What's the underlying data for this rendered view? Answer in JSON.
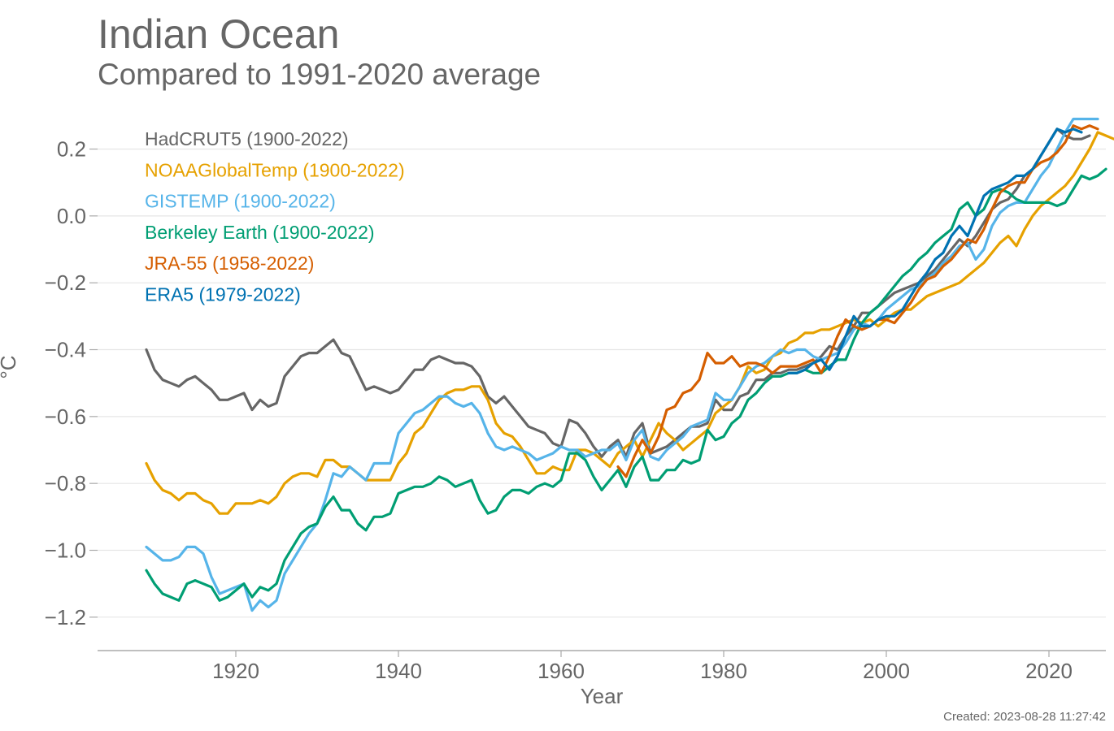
{
  "chart_data": {
    "type": "line",
    "title": "Indian Ocean",
    "subtitle": "Compared to 1991-2020 average",
    "xlabel": "Year",
    "ylabel": "°C",
    "xlim": [
      1903,
      2027
    ],
    "ylim": [
      -1.3,
      0.33
    ],
    "xticks": [
      1920,
      1940,
      1960,
      1980,
      2000,
      2020
    ],
    "yticks": [
      0.2,
      0.0,
      -0.2,
      -0.4,
      -0.6,
      -0.8,
      -1.0,
      -1.2
    ],
    "ytick_labels": [
      "0.2",
      "0.0",
      "−0.2",
      "−0.4",
      "−0.6",
      "−0.8",
      "−1.0",
      "−1.2"
    ],
    "grid": true,
    "legend_position": "top-left",
    "created": "Created: 2023-08-28 11:27:42",
    "series": [
      {
        "name": "HadCRUT5 (1900-2022)",
        "color": "#666666",
        "start": 1909,
        "values": [
          -0.4,
          -0.46,
          -0.49,
          -0.5,
          -0.51,
          -0.49,
          -0.48,
          -0.5,
          -0.52,
          -0.55,
          -0.55,
          -0.54,
          -0.53,
          -0.58,
          -0.55,
          -0.57,
          -0.56,
          -0.48,
          -0.45,
          -0.42,
          -0.41,
          -0.41,
          -0.39,
          -0.37,
          -0.41,
          -0.42,
          -0.47,
          -0.52,
          -0.51,
          -0.52,
          -0.53,
          -0.52,
          -0.49,
          -0.46,
          -0.46,
          -0.43,
          -0.42,
          -0.43,
          -0.44,
          -0.44,
          -0.45,
          -0.48,
          -0.54,
          -0.56,
          -0.54,
          -0.57,
          -0.6,
          -0.63,
          -0.64,
          -0.65,
          -0.68,
          -0.69,
          -0.61,
          -0.62,
          -0.65,
          -0.69,
          -0.72,
          -0.69,
          -0.67,
          -0.72,
          -0.65,
          -0.62,
          -0.71,
          -0.7,
          -0.69,
          -0.67,
          -0.65,
          -0.63,
          -0.63,
          -0.62,
          -0.55,
          -0.58,
          -0.58,
          -0.54,
          -0.53,
          -0.49,
          -0.49,
          -0.47,
          -0.47,
          -0.46,
          -0.46,
          -0.45,
          -0.44,
          -0.42,
          -0.39,
          -0.4,
          -0.36,
          -0.33,
          -0.29,
          -0.29,
          -0.27,
          -0.25,
          -0.23,
          -0.22,
          -0.21,
          -0.2,
          -0.18,
          -0.16,
          -0.13,
          -0.1,
          -0.07,
          -0.09,
          -0.06,
          -0.02,
          0.02,
          0.04,
          0.05,
          0.08,
          0.12,
          0.14,
          0.18,
          0.22,
          0.26,
          0.24,
          0.23,
          0.23,
          0.24
        ]
      },
      {
        "name": "NOAAGlobalTemp (1900-2022)",
        "color": "#E6A100",
        "start": 1909,
        "values": [
          -0.74,
          -0.79,
          -0.82,
          -0.83,
          -0.85,
          -0.83,
          -0.83,
          -0.85,
          -0.86,
          -0.89,
          -0.89,
          -0.86,
          -0.86,
          -0.86,
          -0.85,
          -0.86,
          -0.84,
          -0.8,
          -0.78,
          -0.77,
          -0.77,
          -0.78,
          -0.73,
          -0.73,
          -0.75,
          -0.75,
          -0.77,
          -0.79,
          -0.79,
          -0.79,
          -0.79,
          -0.74,
          -0.71,
          -0.65,
          -0.63,
          -0.59,
          -0.55,
          -0.53,
          -0.52,
          -0.52,
          -0.51,
          -0.51,
          -0.55,
          -0.62,
          -0.65,
          -0.66,
          -0.69,
          -0.73,
          -0.77,
          -0.77,
          -0.75,
          -0.76,
          -0.76,
          -0.7,
          -0.7,
          -0.71,
          -0.73,
          -0.75,
          -0.71,
          -0.69,
          -0.67,
          -0.72,
          -0.67,
          -0.62,
          -0.65,
          -0.67,
          -0.7,
          -0.68,
          -0.66,
          -0.64,
          -0.59,
          -0.57,
          -0.55,
          -0.51,
          -0.45,
          -0.47,
          -0.46,
          -0.42,
          -0.41,
          -0.38,
          -0.37,
          -0.35,
          -0.35,
          -0.34,
          -0.34,
          -0.33,
          -0.32,
          -0.31,
          -0.32,
          -0.31,
          -0.33,
          -0.31,
          -0.29,
          -0.28,
          -0.28,
          -0.26,
          -0.24,
          -0.23,
          -0.22,
          -0.21,
          -0.2,
          -0.18,
          -0.16,
          -0.14,
          -0.11,
          -0.08,
          -0.06,
          -0.09,
          -0.04,
          0.0,
          0.03,
          0.05,
          0.07,
          0.09,
          0.12,
          0.16,
          0.2,
          0.25,
          0.24,
          0.23,
          0.23
        ]
      },
      {
        "name": "GISTEMP (1900-2022)",
        "color": "#56B4E9",
        "start": 1909,
        "values": [
          -0.99,
          -1.01,
          -1.03,
          -1.03,
          -1.02,
          -0.99,
          -0.99,
          -1.01,
          -1.08,
          -1.13,
          -1.12,
          -1.11,
          -1.1,
          -1.18,
          -1.15,
          -1.17,
          -1.15,
          -1.07,
          -1.03,
          -0.99,
          -0.95,
          -0.92,
          -0.85,
          -0.77,
          -0.78,
          -0.75,
          -0.77,
          -0.79,
          -0.74,
          -0.74,
          -0.74,
          -0.65,
          -0.62,
          -0.59,
          -0.58,
          -0.56,
          -0.54,
          -0.54,
          -0.56,
          -0.57,
          -0.56,
          -0.59,
          -0.65,
          -0.69,
          -0.7,
          -0.69,
          -0.7,
          -0.71,
          -0.73,
          -0.72,
          -0.71,
          -0.69,
          -0.7,
          -0.7,
          -0.72,
          -0.71,
          -0.7,
          -0.7,
          -0.68,
          -0.73,
          -0.67,
          -0.64,
          -0.72,
          -0.73,
          -0.7,
          -0.68,
          -0.66,
          -0.63,
          -0.62,
          -0.61,
          -0.53,
          -0.55,
          -0.55,
          -0.51,
          -0.47,
          -0.45,
          -0.44,
          -0.42,
          -0.4,
          -0.41,
          -0.4,
          -0.4,
          -0.42,
          -0.43,
          -0.42,
          -0.41,
          -0.38,
          -0.34,
          -0.32,
          -0.33,
          -0.31,
          -0.28,
          -0.26,
          -0.24,
          -0.22,
          -0.21,
          -0.19,
          -0.17,
          -0.14,
          -0.12,
          -0.09,
          -0.08,
          -0.13,
          -0.1,
          -0.03,
          0.01,
          0.03,
          0.04,
          0.04,
          0.08,
          0.12,
          0.15,
          0.2,
          0.25,
          0.29,
          0.29,
          0.29,
          0.29
        ]
      },
      {
        "name": "Berkeley Earth (1900-2022)",
        "color": "#009E73",
        "start": 1909,
        "values": [
          -1.06,
          -1.1,
          -1.13,
          -1.14,
          -1.15,
          -1.1,
          -1.09,
          -1.1,
          -1.11,
          -1.15,
          -1.14,
          -1.12,
          -1.1,
          -1.14,
          -1.11,
          -1.12,
          -1.1,
          -1.03,
          -0.99,
          -0.95,
          -0.93,
          -0.92,
          -0.87,
          -0.84,
          -0.88,
          -0.88,
          -0.92,
          -0.94,
          -0.9,
          -0.9,
          -0.89,
          -0.83,
          -0.82,
          -0.81,
          -0.81,
          -0.8,
          -0.78,
          -0.79,
          -0.81,
          -0.8,
          -0.79,
          -0.85,
          -0.89,
          -0.88,
          -0.84,
          -0.82,
          -0.82,
          -0.83,
          -0.81,
          -0.8,
          -0.81,
          -0.79,
          -0.71,
          -0.71,
          -0.73,
          -0.78,
          -0.82,
          -0.79,
          -0.76,
          -0.81,
          -0.75,
          -0.72,
          -0.79,
          -0.79,
          -0.76,
          -0.76,
          -0.73,
          -0.74,
          -0.73,
          -0.64,
          -0.67,
          -0.66,
          -0.62,
          -0.6,
          -0.55,
          -0.53,
          -0.5,
          -0.48,
          -0.48,
          -0.47,
          -0.47,
          -0.46,
          -0.47,
          -0.47,
          -0.45,
          -0.43,
          -0.43,
          -0.37,
          -0.32,
          -0.29,
          -0.27,
          -0.24,
          -0.21,
          -0.18,
          -0.16,
          -0.13,
          -0.11,
          -0.08,
          -0.06,
          -0.04,
          0.02,
          0.04,
          0.0,
          0.02,
          0.07,
          0.08,
          0.07,
          0.05,
          0.04,
          0.04,
          0.04,
          0.04,
          0.03,
          0.04,
          0.08,
          0.12,
          0.11,
          0.12,
          0.14
        ]
      },
      {
        "name": "JRA-55 (1958-2022)",
        "color": "#D55E00",
        "start": 1967,
        "values": [
          -0.75,
          -0.78,
          -0.72,
          -0.67,
          -0.71,
          -0.66,
          -0.58,
          -0.57,
          -0.53,
          -0.52,
          -0.49,
          -0.41,
          -0.44,
          -0.44,
          -0.42,
          -0.45,
          -0.44,
          -0.44,
          -0.45,
          -0.47,
          -0.45,
          -0.45,
          -0.45,
          -0.44,
          -0.43,
          -0.47,
          -0.42,
          -0.36,
          -0.31,
          -0.33,
          -0.34,
          -0.33,
          -0.31,
          -0.31,
          -0.32,
          -0.29,
          -0.26,
          -0.22,
          -0.19,
          -0.18,
          -0.15,
          -0.13,
          -0.1,
          -0.07,
          -0.08,
          -0.04,
          0.02,
          0.07,
          0.09,
          0.1,
          0.1,
          0.14,
          0.16,
          0.17,
          0.19,
          0.22,
          0.27,
          0.26,
          0.27,
          0.26
        ]
      },
      {
        "name": "ERA5 (1979-2022)",
        "color": "#0072B2",
        "start": 1988,
        "values": [
          -0.47,
          -0.47,
          -0.46,
          -0.44,
          -0.43,
          -0.46,
          -0.42,
          -0.36,
          -0.3,
          -0.33,
          -0.33,
          -0.31,
          -0.3,
          -0.3,
          -0.28,
          -0.24,
          -0.2,
          -0.17,
          -0.13,
          -0.11,
          -0.06,
          -0.03,
          -0.06,
          0.0,
          0.06,
          0.08,
          0.09,
          0.1,
          0.12,
          0.12,
          0.14,
          0.18,
          0.22,
          0.26,
          0.25,
          0.26,
          0.25
        ]
      }
    ]
  }
}
